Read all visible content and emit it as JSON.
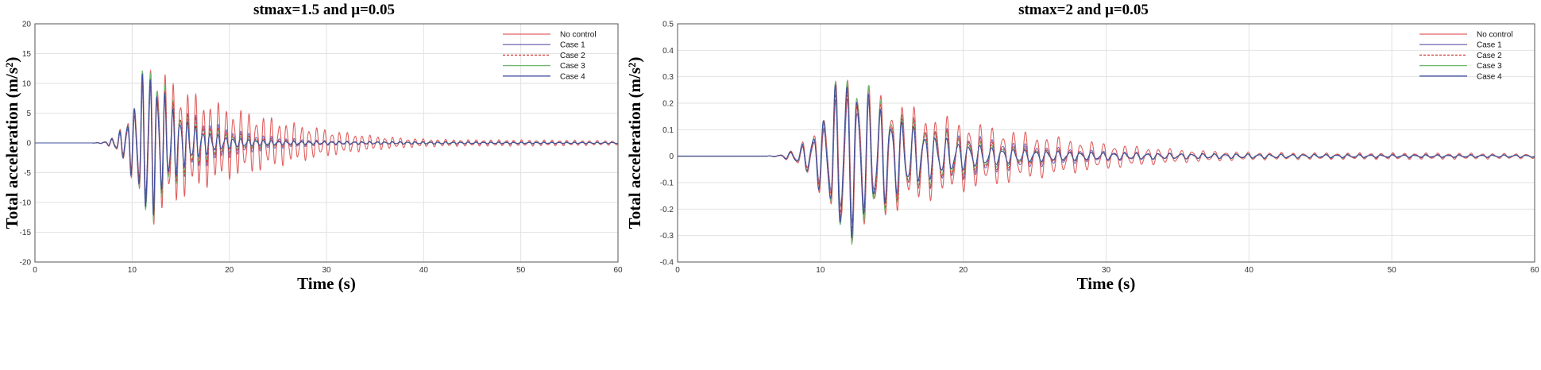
{
  "chart_data": [
    {
      "type": "line",
      "title": "stmax=1.5 and μ=0.05",
      "xlabel": "Time (s)",
      "ylabel": "Total acceleration (m/s²)",
      "xlim": [
        0,
        60
      ],
      "ylim": [
        -20,
        20
      ],
      "xticks": [
        0,
        10,
        20,
        30,
        40,
        50,
        60
      ],
      "yticks": [
        -20,
        -15,
        -10,
        -5,
        0,
        5,
        10,
        15,
        20
      ],
      "grid": true,
      "legend_position": "top-right",
      "signal": {
        "onset": 5.5,
        "peak_time": 11.5,
        "period": 0.78,
        "phase": 0.3,
        "peak_amp": [
          16.5,
          13.5,
          12.5,
          13.0,
          12.0
        ],
        "rise": 2.5,
        "decay": [
          7.5,
          4.2,
          3.8,
          3.5,
          3.2
        ],
        "floor": [
          0.7,
          0.35,
          0.3,
          0.3,
          0.25
        ]
      },
      "series": [
        {
          "name": "No control",
          "color": "#e06060",
          "dash": "none",
          "width": 1.1
        },
        {
          "name": "Case 1",
          "color": "#7d6fb5",
          "dash": "none",
          "width": 1.1
        },
        {
          "name": "Case 2",
          "color": "#d23a3a",
          "dash": "3,2",
          "width": 1.1
        },
        {
          "name": "Case 3",
          "color": "#6fb86f",
          "dash": "none",
          "width": 1.1
        },
        {
          "name": "Case 4",
          "color": "#3d4f9c",
          "dash": "none",
          "width": 1.1
        }
      ]
    },
    {
      "type": "line",
      "title": "stmax=2 and μ=0.05",
      "xlabel": "Time (s)",
      "ylabel": "Total acceleration (m/s²)",
      "xlim": [
        0,
        60
      ],
      "ylim": [
        -0.4,
        0.5
      ],
      "xticks": [
        0,
        10,
        20,
        30,
        40,
        50,
        60
      ],
      "yticks": [
        -0.4,
        -0.3,
        -0.2,
        -0.1,
        0,
        0.1,
        0.2,
        0.3,
        0.4,
        0.5
      ],
      "grid": true,
      "legend_position": "top-right",
      "signal": {
        "onset": 5.5,
        "peak_time": 11.5,
        "period": 0.78,
        "phase": 0.3,
        "peak_amp": [
          0.39,
          0.3,
          0.29,
          0.3,
          0.28
        ],
        "rise": 2.5,
        "decay": [
          7.0,
          5.5,
          5.2,
          5.0,
          4.8
        ],
        "floor": [
          0.018,
          0.012,
          0.011,
          0.011,
          0.01
        ]
      },
      "series": [
        {
          "name": "No control",
          "color": "#e06060",
          "dash": "none",
          "width": 1.1
        },
        {
          "name": "Case 1",
          "color": "#7d6fb5",
          "dash": "none",
          "width": 1.1
        },
        {
          "name": "Case 2",
          "color": "#d23a3a",
          "dash": "3,2",
          "width": 1.1
        },
        {
          "name": "Case 3",
          "color": "#6fb86f",
          "dash": "none",
          "width": 1.1
        },
        {
          "name": "Case 4",
          "color": "#3d4f9c",
          "dash": "none",
          "width": 1.1
        }
      ]
    }
  ]
}
